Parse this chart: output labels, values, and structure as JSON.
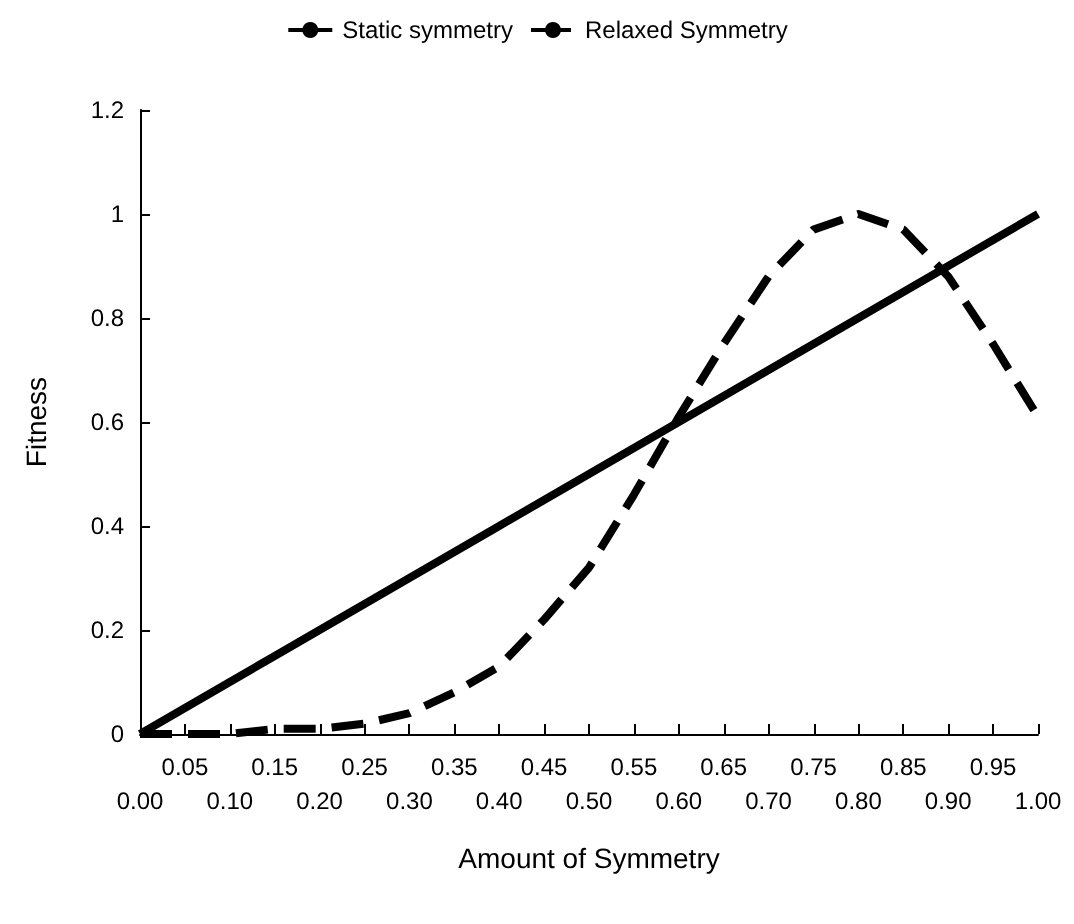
{
  "chart_data": {
    "type": "line",
    "xlabel": "Amount of Symmetry",
    "ylabel": "Fitness",
    "categories": [
      "0.00",
      "0.05",
      "0.10",
      "0.15",
      "0.20",
      "0.25",
      "0.30",
      "0.35",
      "0.40",
      "0.45",
      "0.50",
      "0.55",
      "0.60",
      "0.65",
      "0.70",
      "0.75",
      "0.80",
      "0.85",
      "0.90",
      "0.95",
      "1.00"
    ],
    "series": [
      {
        "name": "Static symmetry",
        "color": "#000000",
        "line_style": "solid",
        "values": [
          0,
          0.05,
          0.1,
          0.15,
          0.2,
          0.25,
          0.3,
          0.35,
          0.4,
          0.45,
          0.5,
          0.55,
          0.6,
          0.65,
          0.7,
          0.75,
          0.8,
          0.85,
          0.9,
          0.95,
          1
        ]
      },
      {
        "name": "Relaxed Symmetry",
        "color": "#000000",
        "line_style": "dashed",
        "values": [
          0,
          0,
          0,
          0.01,
          0.01,
          0.02,
          0.04,
          0.08,
          0.13,
          0.22,
          0.32,
          0.46,
          0.61,
          0.75,
          0.88,
          0.97,
          1,
          0.97,
          0.88,
          0.75,
          0.61
        ]
      }
    ],
    "ylim": [
      0,
      1.2
    ],
    "yticks": [
      0,
      0.2,
      0.4,
      0.6,
      0.8,
      1,
      1.2
    ],
    "grid": false,
    "legend": "top",
    "marker": "none"
  }
}
